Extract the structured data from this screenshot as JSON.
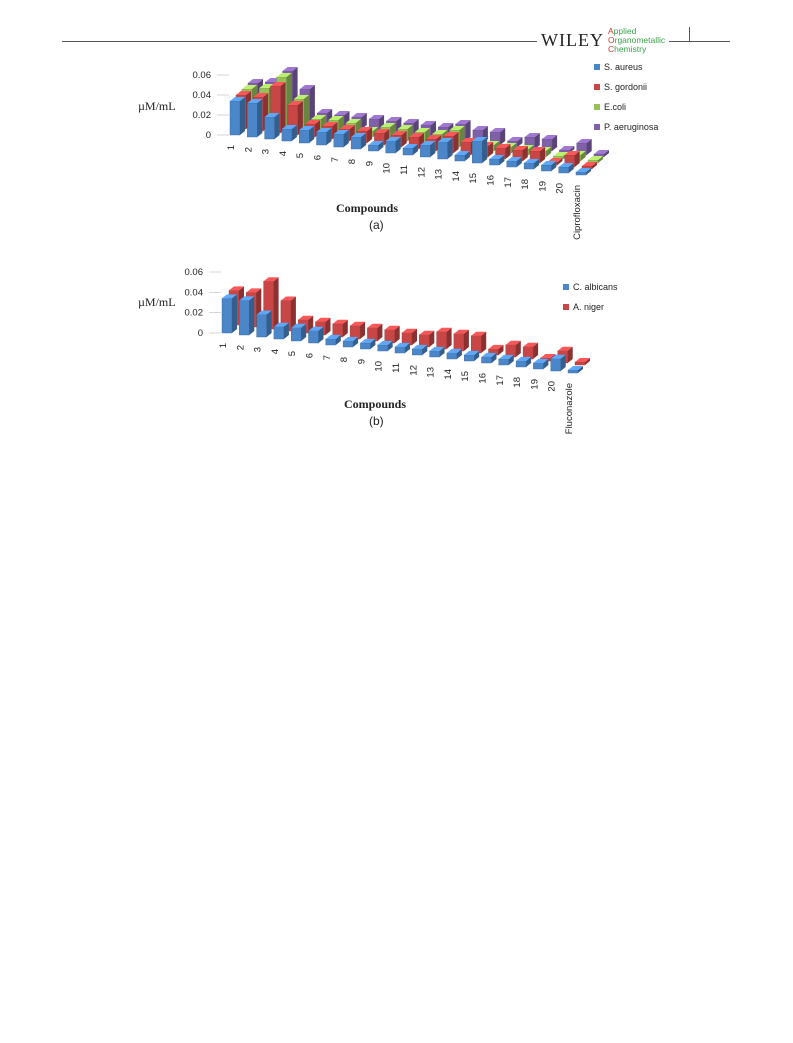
{
  "header": {
    "publisher": "WILEY",
    "journal_lines": [
      "Applied",
      "Organometallic",
      "Chemistry"
    ],
    "journal_initial_color": "#d13a2a",
    "journal_color": "#3aa24a"
  },
  "chart_data": [
    {
      "type": "bar",
      "panel": "(a)",
      "ylabel": "µM/mL",
      "xlabel": "Compounds",
      "yticks": [
        "0",
        "0.02",
        "0.04",
        "0.06"
      ],
      "ylim": [
        0,
        0.06
      ],
      "categories": [
        "1",
        "2",
        "3",
        "4",
        "5",
        "6",
        "7",
        "8",
        "9",
        "10",
        "11",
        "12",
        "13",
        "14",
        "15",
        "16",
        "17",
        "18",
        "19",
        "20",
        "Ciprofloxacin"
      ],
      "series": [
        {
          "name": "S. aureus",
          "color": "#4a86c8",
          "values": [
            0.034,
            0.034,
            0.022,
            0.012,
            0.013,
            0.013,
            0.013,
            0.012,
            0.006,
            0.012,
            0.007,
            0.012,
            0.017,
            0.006,
            0.022,
            0.006,
            0.006,
            0.006,
            0.006,
            0.006,
            0.003
          ]
        },
        {
          "name": "S. gordonii",
          "color": "#c84646",
          "values": [
            0.034,
            0.034,
            0.047,
            0.03,
            0.013,
            0.013,
            0.012,
            0.012,
            0.012,
            0.012,
            0.012,
            0.012,
            0.017,
            0.013,
            0.011,
            0.011,
            0.011,
            0.012,
            0.003,
            0.012,
            0.003
          ]
        },
        {
          "name": "E.coli",
          "color": "#96c05a",
          "values": [
            0.034,
            0.037,
            0.05,
            0.03,
            0.012,
            0.013,
            0.012,
            0.006,
            0.012,
            0.012,
            0.011,
            0.011,
            0.017,
            0.006,
            0.006,
            0.006,
            0.006,
            0.006,
            0.003,
            0.006,
            0.003
          ]
        },
        {
          "name": "P. aeruginosa",
          "color": "#8060a8",
          "values": [
            0.034,
            0.037,
            0.05,
            0.034,
            0.012,
            0.012,
            0.012,
            0.012,
            0.012,
            0.012,
            0.012,
            0.012,
            0.017,
            0.013,
            0.013,
            0.006,
            0.012,
            0.012,
            0.003,
            0.012,
            0.003
          ]
        }
      ],
      "legend_position": "right"
    },
    {
      "type": "bar",
      "panel": "(b)",
      "ylabel": "µM/mL",
      "xlabel": "Compounds",
      "yticks": [
        "0",
        "0.02",
        "0.04",
        "0.06"
      ],
      "ylim": [
        0,
        0.06
      ],
      "categories": [
        "1",
        "2",
        "3",
        "4",
        "5",
        "6",
        "7",
        "8",
        "9",
        "10",
        "11",
        "12",
        "13",
        "14",
        "15",
        "16",
        "17",
        "18",
        "19",
        "20",
        "Fluconazole"
      ],
      "series": [
        {
          "name": "C. albicans",
          "color": "#4a86c8",
          "values": [
            0.034,
            0.034,
            0.022,
            0.012,
            0.013,
            0.012,
            0.006,
            0.006,
            0.006,
            0.006,
            0.006,
            0.006,
            0.006,
            0.006,
            0.006,
            0.006,
            0.006,
            0.006,
            0.006,
            0.012,
            0.003
          ]
        },
        {
          "name": "A. niger",
          "color": "#c84646",
          "values": [
            0.034,
            0.034,
            0.047,
            0.03,
            0.013,
            0.013,
            0.013,
            0.013,
            0.013,
            0.013,
            0.012,
            0.012,
            0.017,
            0.017,
            0.017,
            0.006,
            0.012,
            0.012,
            0.003,
            0.012,
            0.003
          ]
        }
      ],
      "legend_position": "right"
    }
  ]
}
